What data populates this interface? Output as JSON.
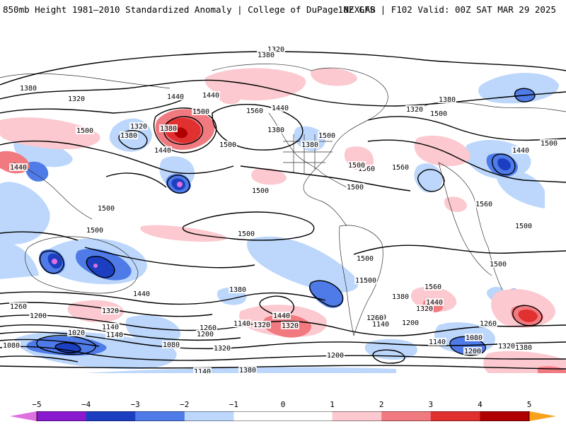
{
  "header": {
    "title": "850mb Height 1981–2010 Standardized Anomaly | College of DuPage NEXLAB",
    "run_info": "18Z GFS | F102 Valid: 00Z SAT MAR 29 2025"
  },
  "colors": {
    "neg5": "#e070e0",
    "neg4": "#8a1ad0",
    "neg3": "#1b3fc0",
    "neg2": "#4f7be8",
    "neg1": "#bcd7fb",
    "zero": "#ffffff",
    "pos1": "#fbc9cf",
    "pos2": "#f07a80",
    "pos3": "#e03030",
    "pos4": "#b00000",
    "pos5": "#f7a21a"
  },
  "colorbar": {
    "ticks": [
      "−5",
      "−4",
      "−3",
      "−2",
      "−1",
      "0",
      "1",
      "2",
      "3",
      "4",
      "5"
    ]
  },
  "contour_labels": [
    "1320",
    "1380",
    "1440",
    "1380",
    "1320",
    "1440",
    "1500",
    "1560",
    "1500",
    "1380",
    "1440",
    "1380",
    "1500",
    "1320",
    "1440",
    "1380",
    "1440",
    "1500",
    "1560",
    "1380",
    "1320",
    "1380",
    "1500",
    "1560",
    "1440",
    "1500",
    "1500",
    "1500",
    "1500",
    "1500",
    "1500",
    "1560",
    "1500",
    "1500",
    "1500",
    "1560",
    "1500",
    "1500",
    "1500",
    "1380",
    "1440",
    "1320",
    "1380",
    "1440",
    "1320",
    "1260",
    "1200",
    "1320",
    "1140",
    "1020",
    "1080",
    "1140",
    "1260",
    "1200",
    "1140",
    "1260",
    "1320",
    "1440",
    "1260",
    "1140",
    "1200",
    "1380",
    "1320",
    "1080",
    "1140",
    "1260",
    "1200",
    "1320",
    "1380",
    "1200",
    "1140",
    "1080",
    "1080"
  ]
}
